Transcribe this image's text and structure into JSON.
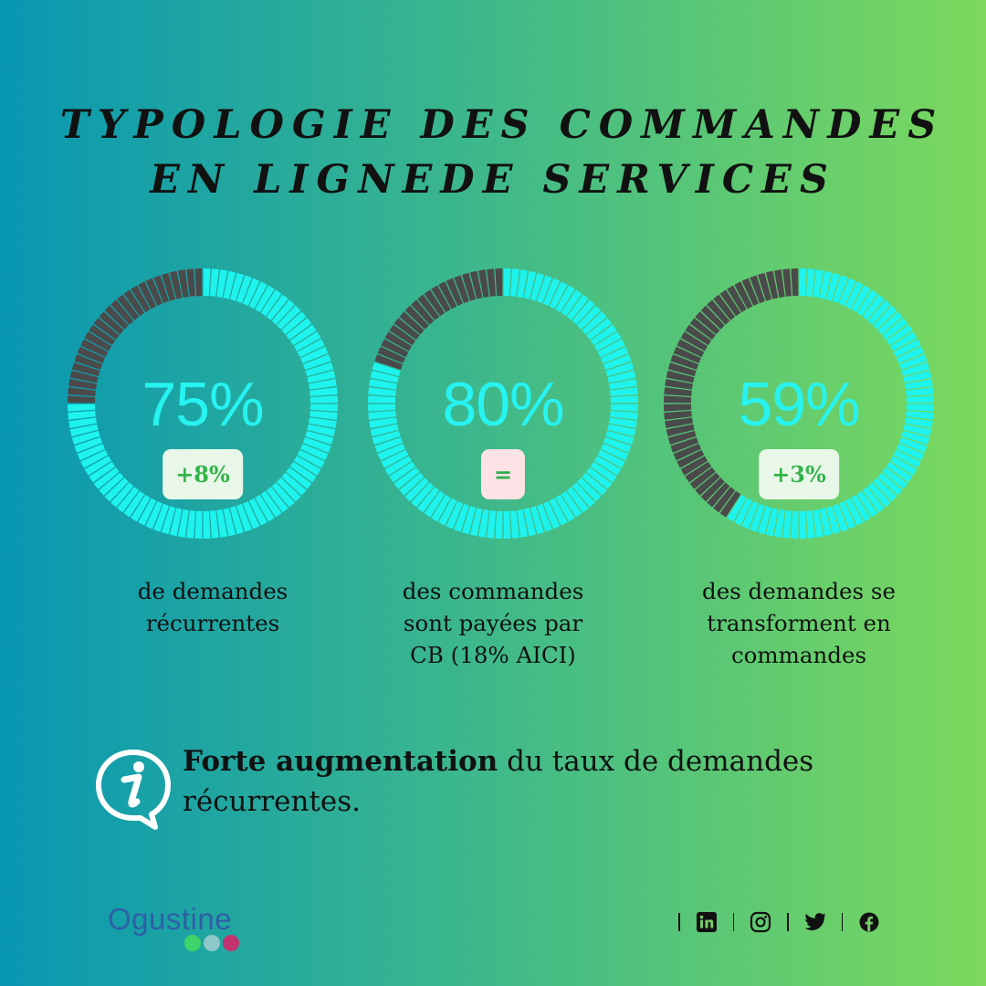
{
  "title": {
    "line1": "TYPOLOGIE DES COMMANDES",
    "line2": "EN LIGNEDE SERVICES"
  },
  "colors": {
    "active": "#1ff3ee",
    "inactive": "#4a4a4a",
    "percent": "#27f3f0",
    "badge_green": "#34b34a"
  },
  "chart_data": {
    "type": "pie",
    "title": "TYPOLOGIE DES COMMANDES EN LIGNEDE SERVICES",
    "categories": [
      "de demandes récurrentes",
      "des commandes sont payées par CB (18% AICI)",
      "des demandes se transforment en commandes"
    ],
    "values": [
      75,
      80,
      59
    ],
    "unit": "%"
  },
  "stats": [
    {
      "value": 75,
      "percent_label": "75%",
      "badge": "+8%",
      "badge_type": "up",
      "desc_lines": [
        "de demandes",
        "récurrentes"
      ]
    },
    {
      "value": 80,
      "percent_label": "80%",
      "badge": "=",
      "badge_type": "neutral",
      "desc_lines": [
        "des commandes",
        "sont payées par",
        "CB (18% AICI)"
      ]
    },
    {
      "value": 59,
      "percent_label": "59%",
      "badge": "+3%",
      "badge_type": "up",
      "desc_lines": [
        "des demandes se",
        "transforment en",
        "commandes"
      ]
    }
  ],
  "info": {
    "icon": "info-speech-bubble-icon",
    "bold_text": "Forte augmentation",
    "rest_line1": " du taux de demandes",
    "rest_line2": "récurrentes."
  },
  "logo": {
    "text": "Ogustine",
    "dot_colors": [
      "#3fd36b",
      "#8fc8c8",
      "#c2326e"
    ]
  },
  "social": [
    "linkedin-icon",
    "instagram-icon",
    "twitter-icon",
    "facebook-icon"
  ]
}
